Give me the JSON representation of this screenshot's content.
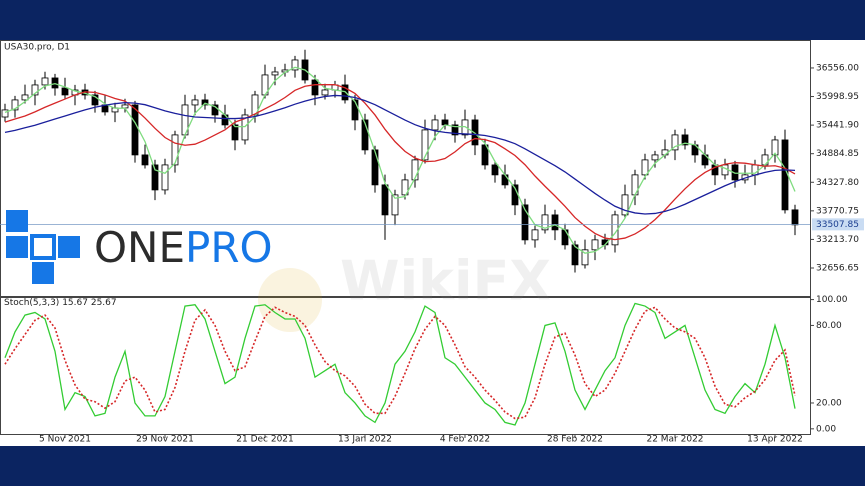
{
  "chart_data": [
    {
      "type": "candlestick",
      "title": "USA30.pro, D1",
      "categories": [
        null,
        null,
        null,
        null,
        null,
        null,
        "5 Nov 2021",
        null,
        null,
        null,
        null,
        null,
        null,
        null,
        null,
        null,
        "29 Nov 2021",
        null,
        null,
        null,
        null,
        null,
        null,
        null,
        null,
        null,
        "21 Dec 2021",
        null,
        null,
        null,
        null,
        null,
        null,
        null,
        null,
        null,
        "13 Jan 2022",
        null,
        null,
        null,
        null,
        null,
        null,
        null,
        null,
        null,
        "4 Feb 2022",
        null,
        null,
        null,
        null,
        null,
        null,
        null,
        null,
        null,
        null,
        "28 Feb 2022",
        null,
        null,
        null,
        null,
        null,
        null,
        null,
        null,
        null,
        "22 Mar 2022",
        null,
        null,
        null,
        null,
        null,
        null,
        null,
        null,
        null,
        "13 Apr 2022",
        null,
        null
      ],
      "open": [
        35600,
        35738,
        35933,
        36030,
        36225,
        36361,
        36166,
        36030,
        36127,
        36030,
        35835,
        35699,
        35777,
        35835,
        34861,
        34666,
        34179,
        34666,
        35251,
        35835,
        35933,
        35835,
        35640,
        35446,
        35153,
        35640,
        36030,
        36420,
        36478,
        36517,
        36712,
        36322,
        36030,
        36127,
        36225,
        35933,
        35543,
        34959,
        34277,
        33692,
        34082,
        34374,
        34764,
        35348,
        35543,
        35446,
        35251,
        35543,
        35056,
        34666,
        34472,
        34277,
        33887,
        33205,
        33400,
        33692,
        33400,
        33108,
        32718,
        33011,
        33205,
        33108,
        33692,
        34082,
        34472,
        34764,
        34861,
        34959,
        35251,
        35056,
        34861,
        34666,
        34472,
        34666,
        34374,
        34472,
        34666,
        34861,
        35153,
        33790
      ],
      "high": [
        35858,
        36013,
        36230,
        36325,
        36481,
        36441,
        36366,
        36227,
        36247,
        36110,
        36035,
        35877,
        35955,
        35915,
        35061,
        34766,
        34786,
        35331,
        36035,
        36033,
        36053,
        35915,
        35840,
        35546,
        35760,
        36110,
        36620,
        36578,
        36637,
        36792,
        36912,
        36422,
        36247,
        36305,
        36425,
        36033,
        35663,
        35039,
        34477,
        34182,
        34494,
        34844,
        35548,
        35643,
        35663,
        35526,
        35743,
        35643,
        35176,
        34746,
        34672,
        34377,
        34007,
        33480,
        33892,
        33792,
        33520,
        33188,
        33211,
        33305,
        33325,
        33772,
        34282,
        34572,
        34884,
        34941,
        35159,
        35351,
        35371,
        35136,
        35061,
        34766,
        34786,
        34746,
        34672,
        34766,
        34981,
        35233,
        35353,
        33890
      ],
      "low": [
        35510,
        35588,
        35863,
        35830,
        36135,
        36016,
        35960,
        35830,
        35940,
        35685,
        35629,
        35499,
        35687,
        34711,
        34596,
        33979,
        34089,
        34516,
        35181,
        35635,
        35745,
        35490,
        35376,
        34953,
        35063,
        35490,
        35960,
        36220,
        36388,
        36367,
        36252,
        35830,
        35940,
        35977,
        35863,
        35343,
        34869,
        34127,
        33205,
        33492,
        33992,
        34224,
        34694,
        35148,
        35356,
        35101,
        35181,
        34856,
        34576,
        34322,
        34207,
        33687,
        33115,
        33055,
        33330,
        33200,
        33018,
        32568,
        32648,
        32811,
        33018,
        32958,
        33622,
        33882,
        34382,
        34614,
        34791,
        34759,
        34966,
        34711,
        34596,
        34272,
        34382,
        34224,
        34304,
        34272,
        34576,
        34711,
        33720,
        33298
      ],
      "close": [
        35738,
        35933,
        36030,
        36225,
        36361,
        36166,
        36030,
        36127,
        36030,
        35835,
        35699,
        35777,
        35835,
        34861,
        34666,
        34179,
        34666,
        35251,
        35835,
        35933,
        35835,
        35640,
        35446,
        35153,
        35640,
        36030,
        36420,
        36478,
        36517,
        36712,
        36322,
        36030,
        36127,
        36225,
        35933,
        35543,
        34959,
        34277,
        33692,
        34082,
        34374,
        34764,
        35348,
        35543,
        35446,
        35251,
        35543,
        35056,
        34666,
        34472,
        34277,
        33887,
        33205,
        33400,
        33692,
        33400,
        33108,
        32718,
        33011,
        33205,
        33108,
        33692,
        34082,
        34472,
        34764,
        34861,
        34959,
        35251,
        35056,
        34861,
        34666,
        34472,
        34666,
        34374,
        34472,
        34666,
        34861,
        35153,
        33790,
        33498
      ],
      "up_color": "#ffffff",
      "down_color": "#000000",
      "series": [
        {
          "color": "#7fdc7f",
          "values": [
            35690,
            35760,
            35900,
            36060,
            36205,
            36250,
            36185,
            36108,
            36062,
            35997,
            35855,
            35770,
            35770,
            35491,
            35121,
            34569,
            34504,
            34699,
            35251,
            35673,
            35868,
            35803,
            35640,
            35413,
            35413,
            35608,
            36030,
            36309,
            36472,
            36569,
            36517,
            36355,
            36160,
            36127,
            36095,
            35900,
            35478,
            34926,
            34309,
            34017,
            34049,
            34407,
            34829,
            35218,
            35446,
            35413,
            35413,
            35283,
            35088,
            34731,
            34472,
            34212,
            33790,
            33497,
            33432,
            33497,
            33400,
            33075,
            32946,
            32978,
            33108,
            33335,
            33627,
            34082,
            34439,
            34699,
            34861,
            35024,
            35089,
            35056,
            34861,
            34666,
            34601,
            34504,
            34504,
            34504,
            34666,
            34893,
            34601,
            34147
          ]
        },
        {
          "color": "#d62728",
          "values": [
            35500,
            35560,
            35620,
            35700,
            35790,
            35870,
            35950,
            36030,
            36090,
            36080,
            36030,
            35960,
            35910,
            35760,
            35580,
            35380,
            35200,
            35090,
            35050,
            35070,
            35150,
            35250,
            35350,
            35500,
            35570,
            35660,
            35760,
            35860,
            35980,
            36120,
            36200,
            36230,
            36230,
            36230,
            36170,
            36060,
            35870,
            35640,
            35360,
            35120,
            34930,
            34800,
            34730,
            34740,
            34790,
            34920,
            35080,
            35180,
            35160,
            35100,
            34980,
            34850,
            34670,
            34450,
            34250,
            34060,
            33860,
            33640,
            33470,
            33330,
            33240,
            33210,
            33240,
            33320,
            33440,
            33600,
            33790,
            34000,
            34200,
            34380,
            34520,
            34620,
            34680,
            34710,
            34700,
            34670,
            34640,
            34650,
            34600,
            34490
          ]
        },
        {
          "color": "#1a1f9c",
          "values": [
            35300,
            35340,
            35390,
            35440,
            35500,
            35560,
            35620,
            35680,
            35740,
            35790,
            35830,
            35860,
            35880,
            35870,
            35840,
            35780,
            35720,
            35670,
            35630,
            35600,
            35590,
            35580,
            35570,
            35570,
            35580,
            35610,
            35660,
            35720,
            35780,
            35850,
            35910,
            35960,
            36000,
            36020,
            36010,
            35980,
            35920,
            35840,
            35740,
            35640,
            35540,
            35450,
            35380,
            35330,
            35300,
            35280,
            35270,
            35260,
            35240,
            35200,
            35150,
            35080,
            34980,
            34870,
            34760,
            34650,
            34530,
            34390,
            34250,
            34110,
            33980,
            33860,
            33780,
            33730,
            33710,
            33720,
            33760,
            33820,
            33900,
            33990,
            34080,
            34170,
            34260,
            34340,
            34410,
            34470,
            34520,
            34560,
            34570,
            34560
          ]
        }
      ],
      "last_price": 33507.85,
      "ylim": [
        32111,
        37101
      ],
      "yticks": [
        {
          "value": 36556,
          "label": "36556.00"
        },
        35998.95,
        {
          "value": 35441.9,
          "label": "35441.90"
        },
        34884.85,
        {
          "value": 34327.8,
          "label": "34327.80"
        },
        33770.75,
        {
          "value": 33213.7,
          "label": "33213.70"
        },
        32656.65
      ],
      "logo": {
        "part1": "ONE",
        "part2": "PRO"
      },
      "watermark": "WikiFX"
    },
    {
      "type": "line",
      "title": "Stoch(5,3,3)",
      "series": [
        {
          "color": "#33cc33",
          "dashed": false,
          "values": [
            55,
            75,
            88,
            90,
            85,
            60,
            15,
            28,
            25,
            10,
            12,
            40,
            60,
            20,
            10,
            10,
            25,
            60,
            95,
            96,
            85,
            60,
            35,
            40,
            70,
            95,
            96,
            90,
            85,
            85,
            70,
            40,
            45,
            50,
            28,
            20,
            10,
            5,
            20,
            50,
            60,
            75,
            95,
            90,
            55,
            50,
            40,
            30,
            20,
            15,
            5,
            3,
            20,
            50,
            80,
            82,
            60,
            30,
            15,
            30,
            45,
            55,
            80,
            97,
            95,
            90,
            70,
            75,
            80,
            55,
            30,
            15,
            12,
            25,
            35,
            28,
            50,
            80,
            55,
            15.67
          ]
        },
        {
          "color": "#d62728",
          "dashed": true,
          "values": [
            50,
            62,
            73,
            84,
            88,
            78,
            53,
            34,
            23,
            21,
            16,
            21,
            37,
            40,
            30,
            13,
            15,
            32,
            60,
            84,
            92,
            80,
            60,
            45,
            48,
            68,
            87,
            94,
            90,
            87,
            80,
            65,
            52,
            45,
            41,
            33,
            19,
            12,
            12,
            25,
            43,
            62,
            77,
            87,
            80,
            65,
            48,
            40,
            30,
            22,
            13,
            8,
            9,
            24,
            50,
            71,
            74,
            57,
            35,
            25,
            30,
            43,
            60,
            77,
            91,
            94,
            85,
            78,
            75,
            70,
            55,
            33,
            19,
            17,
            24,
            29,
            38,
            53,
            61,
            25.67
          ]
        }
      ],
      "ylim": [
        -4,
        102
      ],
      "yticks": [
        {
          "value": 100,
          "label": "100.00"
        },
        {
          "value": 80,
          "label": "80.00"
        },
        {
          "value": 20,
          "label": "20.00"
        },
        {
          "value": 0,
          "label": "0.00"
        }
      ]
    }
  ]
}
